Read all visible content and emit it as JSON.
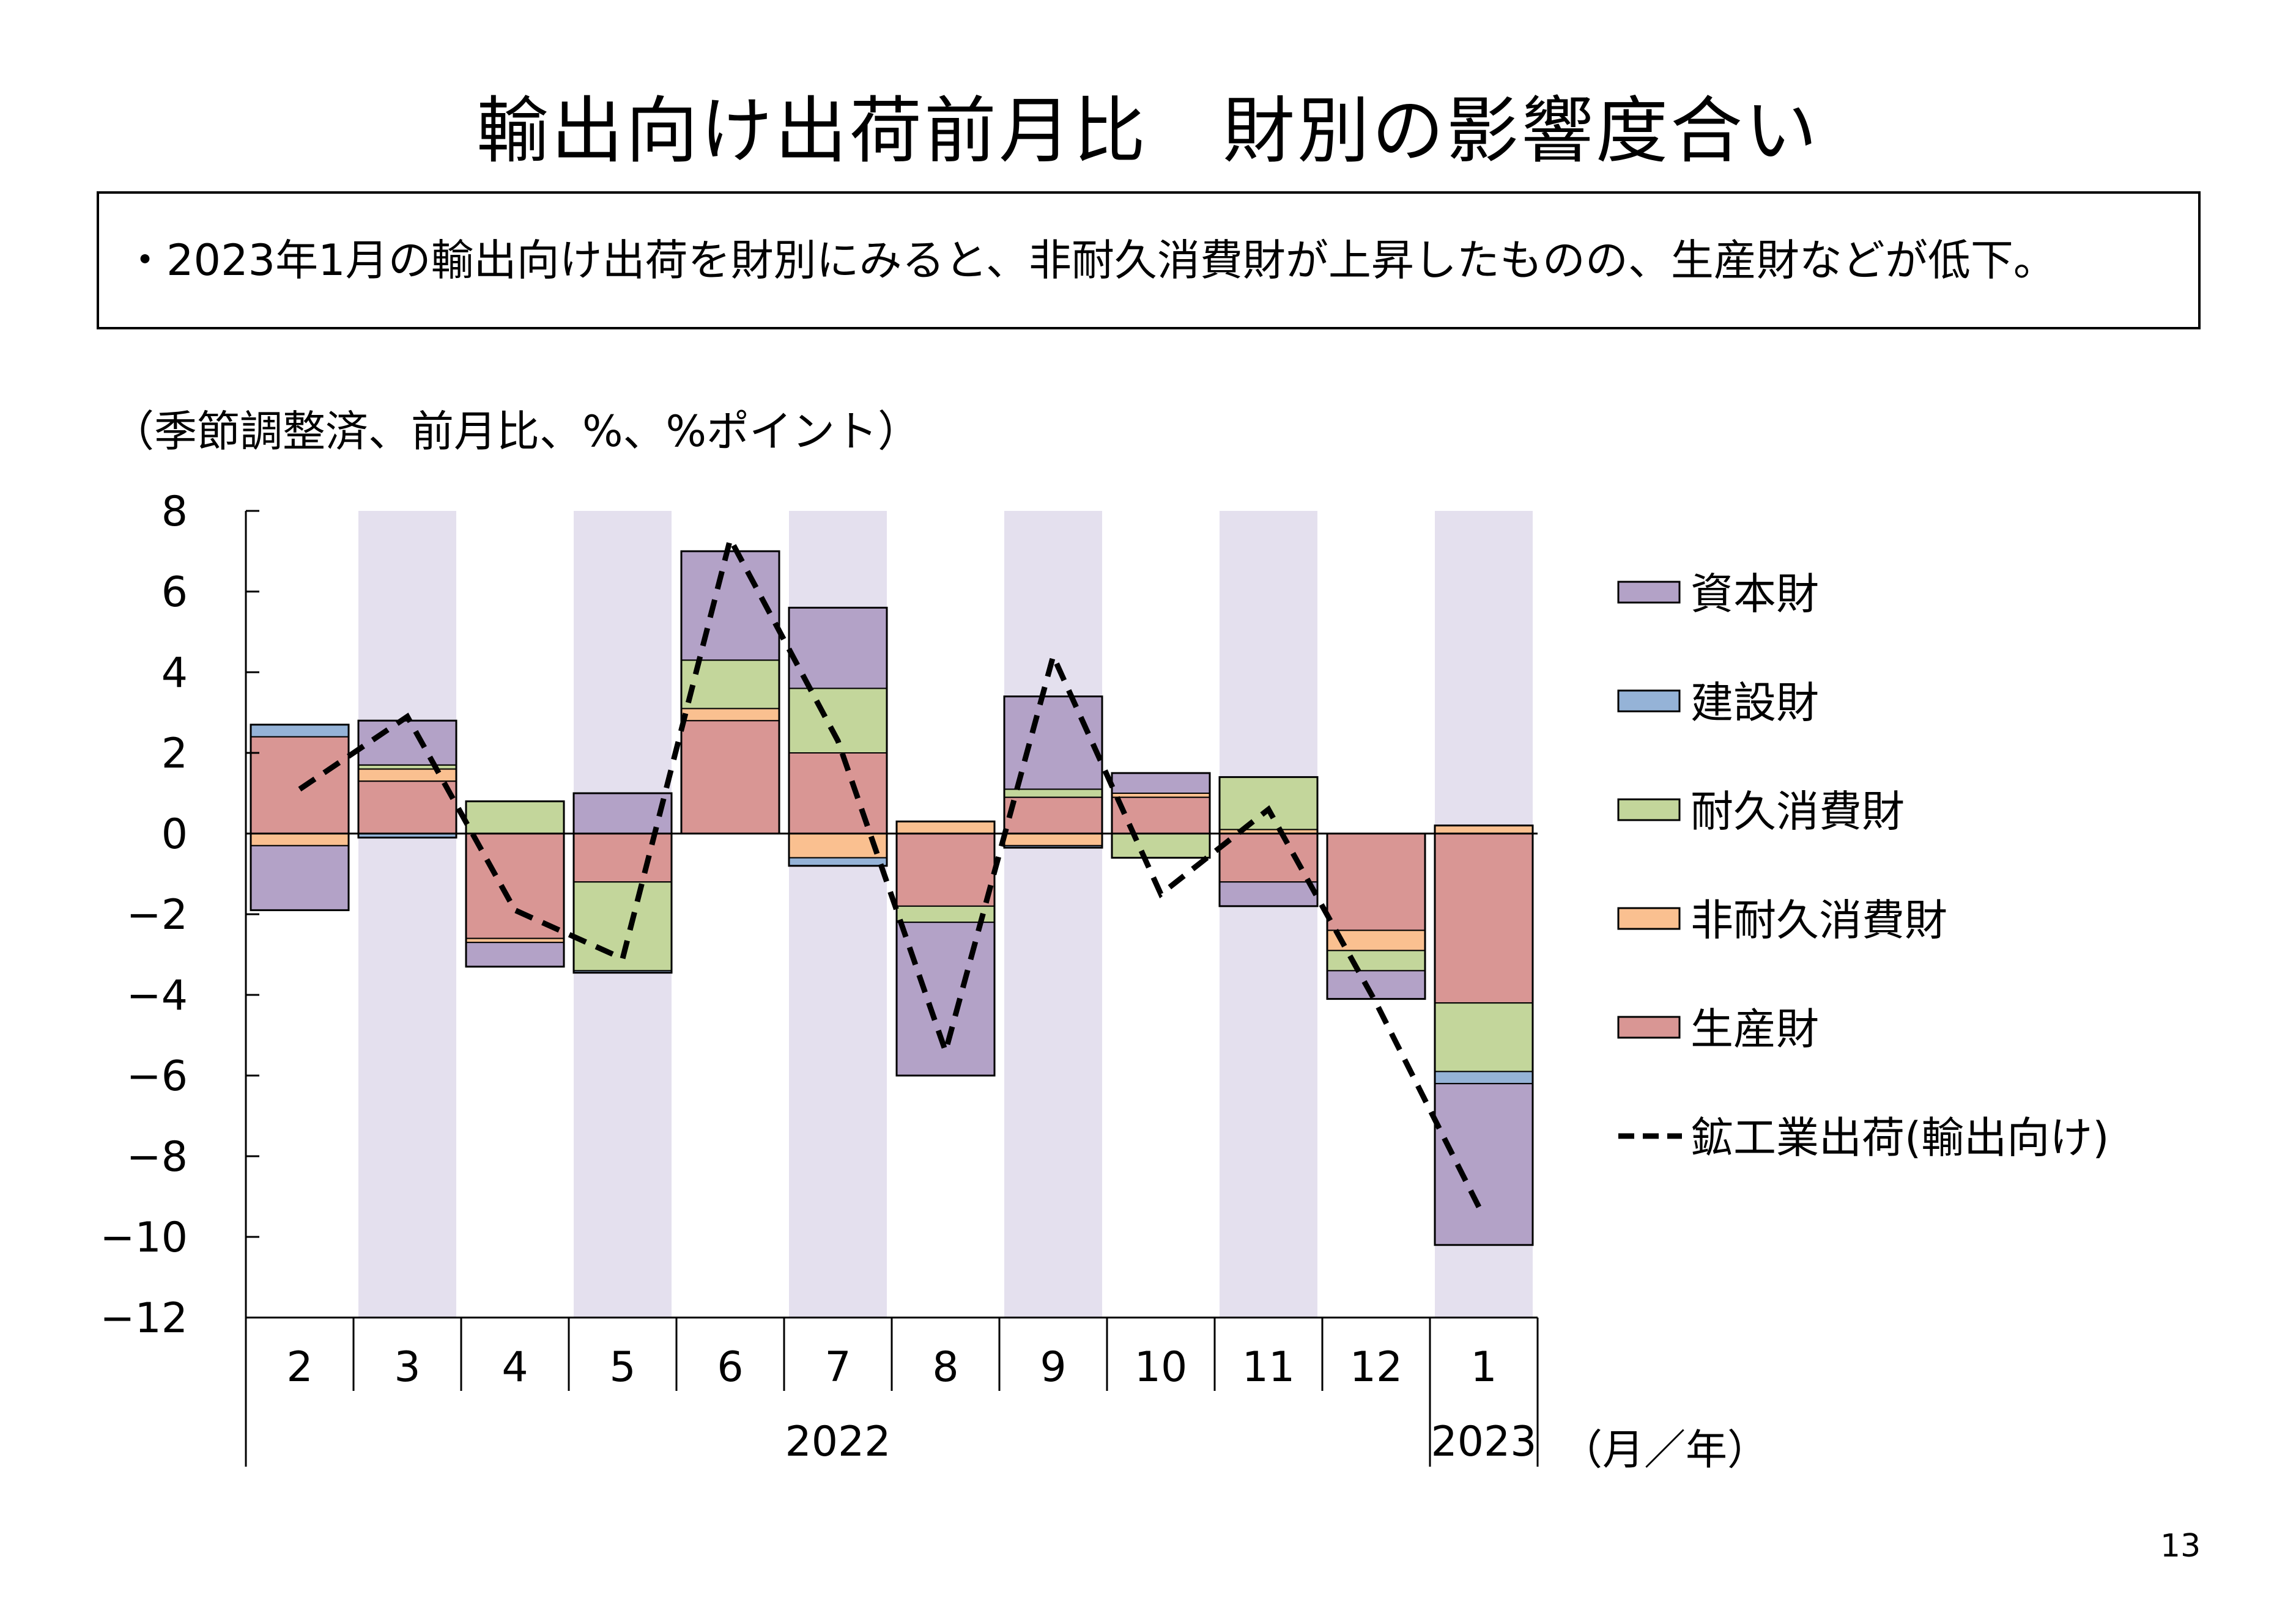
{
  "page": {
    "title": "輸出向け出荷前月比　財別の影響度合い",
    "summary": "・2023年1月の輸出向け出荷を財別にみると、非耐久消費財が上昇したものの、生産財などが低下。",
    "unit_note": "（季節調整済、前月比、%、%ポイント）",
    "page_number": "13"
  },
  "chart_data": {
    "type": "bar",
    "stacked": true,
    "categories": [
      "2",
      "3",
      "4",
      "5",
      "6",
      "7",
      "8",
      "9",
      "10",
      "11",
      "12",
      "1"
    ],
    "year_groups": [
      {
        "label": "2022",
        "from": 0,
        "to": 10
      },
      {
        "label": "2023",
        "from": 11,
        "to": 11
      }
    ],
    "xlabel": "（月／年）",
    "ylim": [
      -12,
      8
    ],
    "yticks": [
      8,
      6,
      4,
      2,
      0,
      -2,
      -4,
      -6,
      -8,
      -10,
      -12
    ],
    "yticks_labels": [
      "8",
      "6",
      "4",
      "2",
      "0",
      "−2",
      "−4",
      "−6",
      "−8",
      "−10",
      "−12"
    ],
    "shading": {
      "color": "#e4e0ee",
      "categories": [
        1,
        3,
        5,
        7,
        9,
        11
      ]
    },
    "series": [
      {
        "name": "生産財",
        "color": "#d99694",
        "values": [
          2.4,
          1.3,
          -2.6,
          -1.2,
          2.8,
          2.0,
          -1.8,
          0.9,
          0.9,
          -1.2,
          -2.4,
          -4.2
        ]
      },
      {
        "name": "非耐久消費財",
        "color": "#fac090",
        "values": [
          -0.3,
          0.3,
          -0.1,
          0.0,
          0.3,
          -0.6,
          0.3,
          -0.3,
          0.1,
          0.1,
          -0.5,
          0.2
        ]
      },
      {
        "name": "耐久消費財",
        "color": "#c3d69b",
        "values": [
          0.0,
          0.1,
          0.8,
          -2.2,
          1.2,
          1.6,
          -0.4,
          0.2,
          -0.6,
          1.3,
          -0.5,
          -1.7
        ]
      },
      {
        "name": "建設財",
        "color": "#95b3d7",
        "values": [
          0.3,
          -0.1,
          0.0,
          -0.05,
          0.0,
          -0.2,
          0.0,
          -0.05,
          0.0,
          0.0,
          0.0,
          -0.3
        ]
      },
      {
        "name": "資本財",
        "color": "#b3a2c7",
        "values": [
          -1.6,
          1.1,
          -0.6,
          1.0,
          2.7,
          2.0,
          -3.8,
          2.3,
          0.5,
          -0.6,
          -0.7,
          -4.0
        ]
      }
    ],
    "line": {
      "name": "鉱工業出荷(輸出向け)",
      "style": "dashed",
      "color": "#000000",
      "values": [
        1.1,
        2.9,
        -1.9,
        -3.1,
        7.3,
        2.3,
        -5.4,
        4.4,
        -1.5,
        0.6,
        -4.2,
        -9.5
      ]
    },
    "legend": {
      "placement": "right",
      "order": [
        "資本財",
        "建設財",
        "耐久消費財",
        "非耐久消費財",
        "生産財",
        "鉱工業出荷(輸出向け)"
      ]
    }
  }
}
